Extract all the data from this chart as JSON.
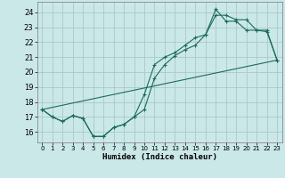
{
  "xlabel": "Humidex (Indice chaleur)",
  "background_color": "#cbe8e8",
  "grid_color": "#aac8c8",
  "line_color": "#1a6b5a",
  "xlim": [
    -0.5,
    23.5
  ],
  "ylim": [
    15.3,
    24.7
  ],
  "xticks": [
    0,
    1,
    2,
    3,
    4,
    5,
    6,
    7,
    8,
    9,
    10,
    11,
    12,
    13,
    14,
    15,
    16,
    17,
    18,
    19,
    20,
    21,
    22,
    23
  ],
  "yticks": [
    16,
    17,
    18,
    19,
    20,
    21,
    22,
    23,
    24
  ],
  "series1_x": [
    0,
    1,
    2,
    3,
    4,
    5,
    6,
    7,
    8,
    9,
    10,
    11,
    12,
    13,
    14,
    15,
    16,
    17,
    18,
    19,
    20,
    21,
    22,
    23
  ],
  "series1_y": [
    17.5,
    17.0,
    16.7,
    17.1,
    16.9,
    15.7,
    15.7,
    16.3,
    16.5,
    17.0,
    17.5,
    19.6,
    20.5,
    21.1,
    21.5,
    21.8,
    22.5,
    24.2,
    23.4,
    23.4,
    22.8,
    22.8,
    22.8,
    20.8
  ],
  "series2_x": [
    0,
    1,
    2,
    3,
    4,
    5,
    6,
    7,
    8,
    9,
    10,
    11,
    12,
    13,
    14,
    15,
    16,
    17,
    18,
    19,
    20,
    21,
    22,
    23
  ],
  "series2_y": [
    17.5,
    17.0,
    16.7,
    17.1,
    16.9,
    15.7,
    15.7,
    16.3,
    16.5,
    17.0,
    18.5,
    20.5,
    21.0,
    21.3,
    21.8,
    22.3,
    22.5,
    23.8,
    23.8,
    23.5,
    23.5,
    22.8,
    22.7,
    20.8
  ],
  "series3_x": [
    0,
    23
  ],
  "series3_y": [
    17.5,
    20.8
  ]
}
